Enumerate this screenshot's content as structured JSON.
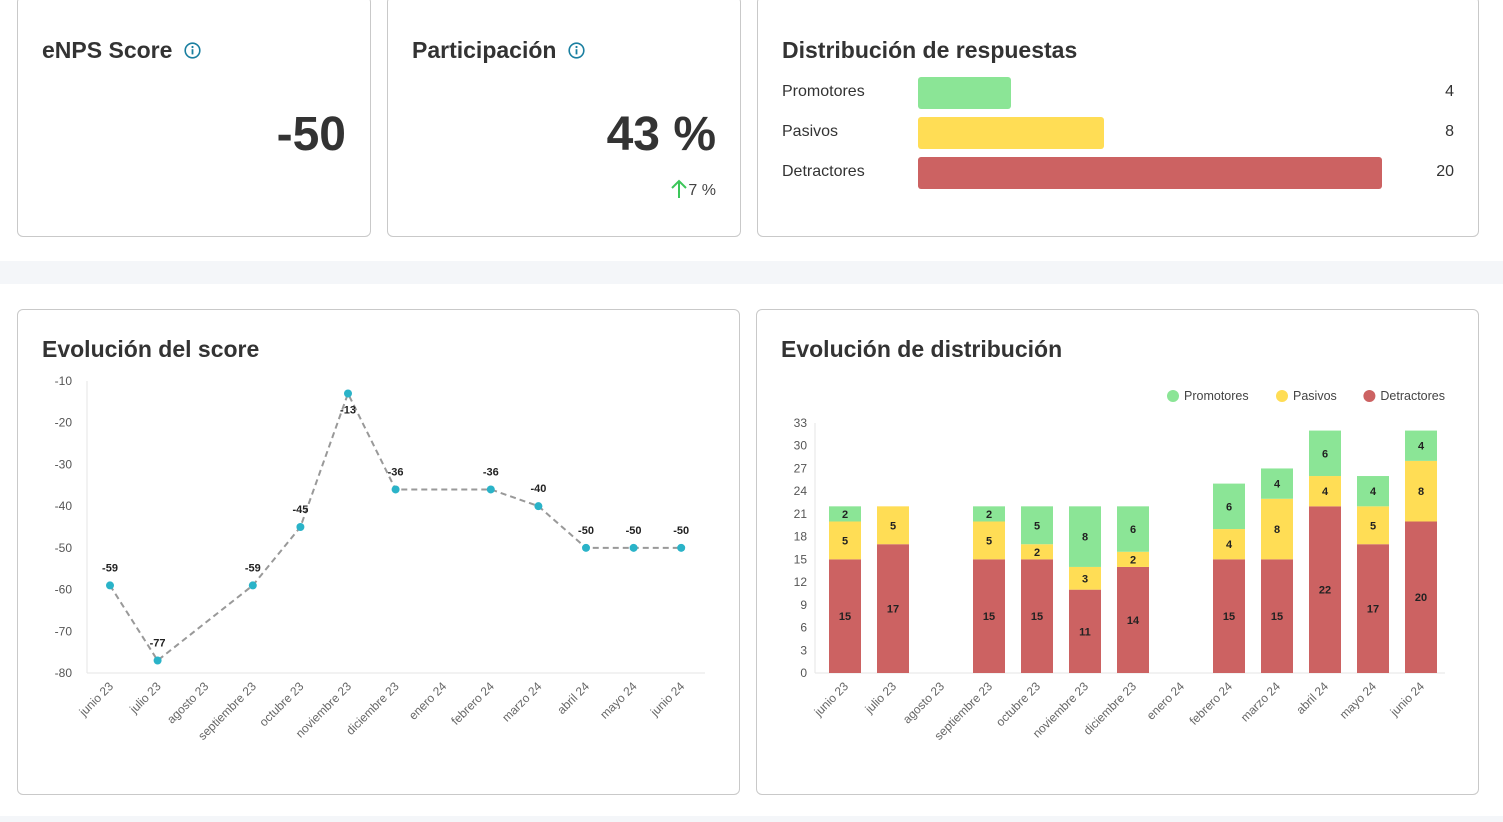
{
  "colors": {
    "promoters": "#8be596",
    "passives": "#ffdd55",
    "detractors": "#cc6262",
    "line": "#999999",
    "point": "#2ab3c8",
    "info": "#1a7fa0",
    "up": "#3cc65a"
  },
  "enps": {
    "title": "eNPS Score",
    "value": "-50",
    "info_icon": "info-icon"
  },
  "participation": {
    "title": "Participación",
    "value": "43 %",
    "delta": "7 %",
    "delta_icon": "arrow-up-icon"
  },
  "distribution": {
    "title": "Distribución de respuestas",
    "rows": [
      {
        "label": "Promotores",
        "value": 4
      },
      {
        "label": "Pasivos",
        "value": 8
      },
      {
        "label": "Detractores",
        "value": 20
      }
    ]
  },
  "chart_data": [
    {
      "type": "line",
      "title": "Evolución del score",
      "categories": [
        "junio 23",
        "julio 23",
        "agosto 23",
        "septiembre 23",
        "octubre 23",
        "noviembre 23",
        "diciembre 23",
        "enero 24",
        "febrero 24",
        "marzo 24",
        "abril 24",
        "mayo 24",
        "junio 24"
      ],
      "values": [
        -59,
        -77,
        null,
        -59,
        -45,
        -13,
        -36,
        null,
        -36,
        -40,
        -50,
        -50,
        -50
      ],
      "ylim": [
        -80,
        -10
      ],
      "yticks": [
        -10,
        -20,
        -30,
        -40,
        -50,
        -60,
        -70,
        -80
      ]
    },
    {
      "type": "bar",
      "stacked": true,
      "title": "Evolución de distribución",
      "categories": [
        "junio 23",
        "julio 23",
        "agosto 23",
        "septiembre 23",
        "octubre 23",
        "noviembre 23",
        "diciembre 23",
        "enero 24",
        "febrero 24",
        "marzo 24",
        "abril 24",
        "mayo 24",
        "junio 24"
      ],
      "series": [
        {
          "name": "Detractores",
          "values": [
            15,
            17,
            null,
            15,
            15,
            11,
            14,
            null,
            15,
            15,
            22,
            17,
            20
          ]
        },
        {
          "name": "Pasivos",
          "values": [
            5,
            5,
            null,
            5,
            2,
            3,
            2,
            null,
            4,
            8,
            4,
            5,
            8
          ]
        },
        {
          "name": "Promotores",
          "values": [
            2,
            null,
            null,
            2,
            5,
            8,
            6,
            null,
            6,
            4,
            6,
            4,
            4
          ]
        }
      ],
      "legend": [
        "Promotores",
        "Pasivos",
        "Detractores"
      ],
      "ylim": [
        0,
        33
      ],
      "yticks": [
        0,
        3,
        6,
        9,
        12,
        15,
        18,
        21,
        24,
        27,
        30,
        33
      ]
    }
  ]
}
